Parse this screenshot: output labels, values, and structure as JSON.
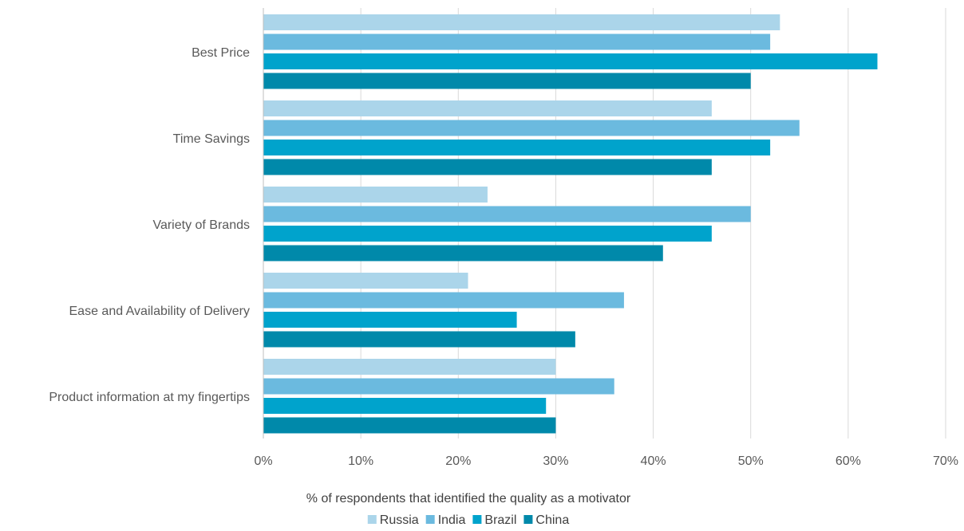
{
  "chart_data": {
    "type": "bar",
    "orientation": "horizontal",
    "categories": [
      "Best Price",
      "Time Savings",
      "Variety of Brands",
      "Ease and Availability of Delivery",
      "Product information at my fingertips"
    ],
    "series": [
      {
        "name": "Russia",
        "color": "#abd5ea",
        "values": [
          53,
          46,
          23,
          21,
          30
        ]
      },
      {
        "name": "India",
        "color": "#6bbadf",
        "values": [
          52,
          55,
          50,
          37,
          36
        ]
      },
      {
        "name": "Brazil",
        "color": "#00a3cc",
        "values": [
          63,
          52,
          46,
          26,
          29
        ]
      },
      {
        "name": "China",
        "color": "#0089aa",
        "values": [
          50,
          46,
          41,
          32,
          30
        ]
      }
    ],
    "xlabel": "% of respondents that identified the quality as a motivator",
    "xlim": [
      0,
      70
    ],
    "xticks": [
      0,
      10,
      20,
      30,
      40,
      50,
      60,
      70
    ],
    "xtick_labels": [
      "0%",
      "10%",
      "20%",
      "30%",
      "40%",
      "50%",
      "60%",
      "70%"
    ],
    "grid": true,
    "legend_position": "bottom"
  }
}
